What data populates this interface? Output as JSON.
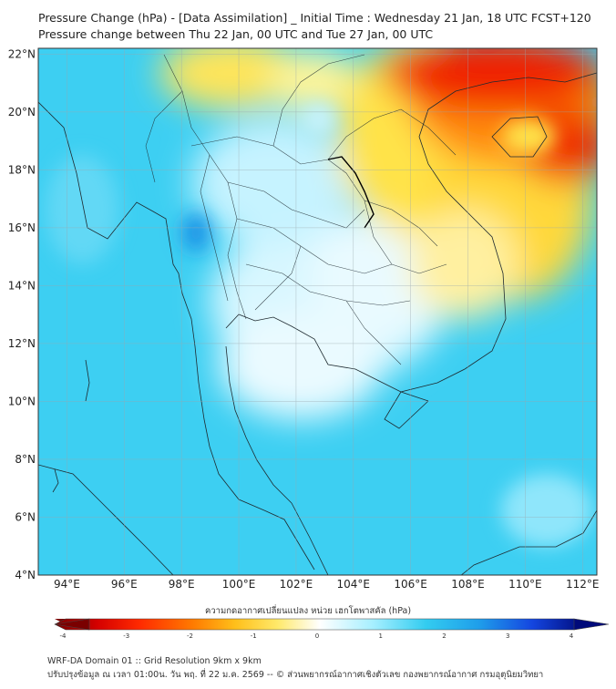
{
  "header": {
    "title_line1": "Pressure Change (hPa) - [Data Assimilation] _ Initial Time : Wednesday 21 Jan, 18 UTC FCST+120",
    "title_line2": "Pressure change between Thu 22 Jan, 00 UTC and Tue 27 Jan, 00 UTC"
  },
  "map": {
    "lat_labels": [
      "22°N",
      "20°N",
      "18°N",
      "16°N",
      "14°N",
      "12°N",
      "10°N",
      "8°N",
      "6°N",
      "4°N"
    ],
    "lon_labels": [
      "94°E",
      "96°E",
      "98°E",
      "100°E",
      "102°E",
      "104°E",
      "106°E",
      "108°E",
      "110°E",
      "112°E"
    ],
    "lat_values": [
      22,
      20,
      18,
      16,
      14,
      12,
      10,
      8,
      6,
      4
    ],
    "lon_values": [
      94,
      96,
      98,
      100,
      102,
      104,
      106,
      108,
      110,
      112
    ],
    "extent": {
      "lon_min": 93,
      "lon_max": 112.5,
      "lat_min": 4,
      "lat_max": 22.2
    },
    "grid": true,
    "colors": {
      "ocean_cyan": "#33ccf0",
      "strong_fall": "#1a9ae6",
      "rise_yellow": "#ffe84d",
      "rise_orange": "#ff9a1a",
      "rise_red": "#e81a00"
    }
  },
  "colorbar": {
    "label": "ความกดอากาศเปลี่ยนแปลง หน่วย เฮกโตพาสคัล (hPa)",
    "ticks": [
      "-4",
      "-3",
      "-2",
      "-1",
      "0",
      "1",
      "2",
      "3",
      "4"
    ],
    "tick_values": [
      -4,
      -3,
      -2,
      -1,
      0,
      1,
      2,
      3,
      4
    ],
    "colors": [
      "#7a0000",
      "#d40000",
      "#ff3300",
      "#ff7700",
      "#ffaa00",
      "#ffd93a",
      "#fff39a",
      "#ffffff",
      "#c8f4ff",
      "#7ee6ff",
      "#33ccf0",
      "#1fa6ec",
      "#1a6ee6",
      "#0a2fd9",
      "#000a7a"
    ]
  },
  "footer": {
    "line1": "WRF-DA Domain 01 :: Grid Resolution 9km x 9km",
    "line2": "ปรับปรุงข้อมูล ณ เวลา 01:00น. วัน พฤ. ที่ 22 ม.ค. 2569 -- © ส่วนพยากรณ์อากาศเชิงตัวเลข กองพยากรณ์อากาศ กรมอุตุนิยมวิทยา"
  }
}
